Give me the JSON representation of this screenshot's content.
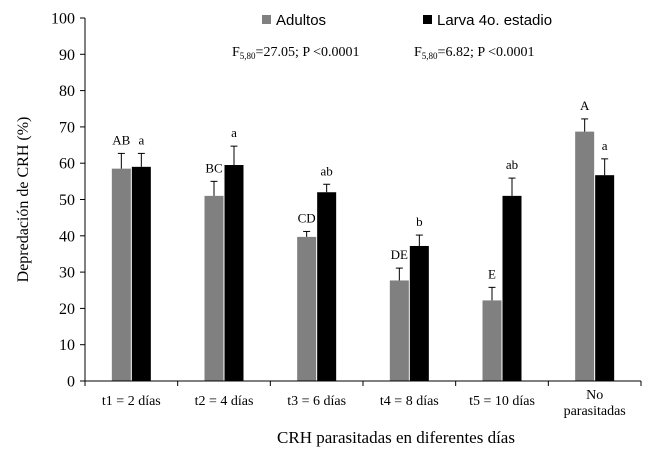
{
  "chart_data": {
    "type": "bar",
    "xlabel": "CRH parasitadas en diferentes días",
    "ylabel": "Depredación de CRH (%)",
    "ylim": [
      0,
      100
    ],
    "yticks": [
      0,
      10,
      20,
      30,
      40,
      50,
      60,
      70,
      80,
      90,
      100
    ],
    "grid": false,
    "legend_position": "top",
    "categories": [
      "t1 = 2 días",
      "t2 = 4 días",
      "t3 = 6 días",
      "t4 = 8 días",
      "t5 = 10 días",
      "No parasitadas"
    ],
    "series": [
      {
        "name": "Adultos",
        "color": "#808080",
        "values": [
          58.5,
          51,
          39.7,
          27.7,
          22.2,
          68.7
        ],
        "errors": [
          4.2,
          4,
          1.5,
          3.4,
          3.6,
          3.5
        ],
        "labels": [
          "AB",
          "BC",
          "CD",
          "DE",
          "E",
          "A"
        ]
      },
      {
        "name": "Larva 4o. estadio",
        "color": "#000000",
        "values": [
          59,
          59.5,
          52,
          37.2,
          51,
          56.7
        ],
        "errors": [
          3.7,
          5.2,
          2.2,
          3,
          4.9,
          4.5
        ],
        "labels": [
          "a",
          "a",
          "ab",
          "b",
          "ab",
          "a"
        ]
      }
    ],
    "annotations": [
      {
        "base": "F",
        "sub": "5,80",
        "rest": "=27.05; P <0.0001"
      },
      {
        "base": "F",
        "sub": "5,80",
        "rest": "=6.82; P <0.0001"
      }
    ]
  }
}
